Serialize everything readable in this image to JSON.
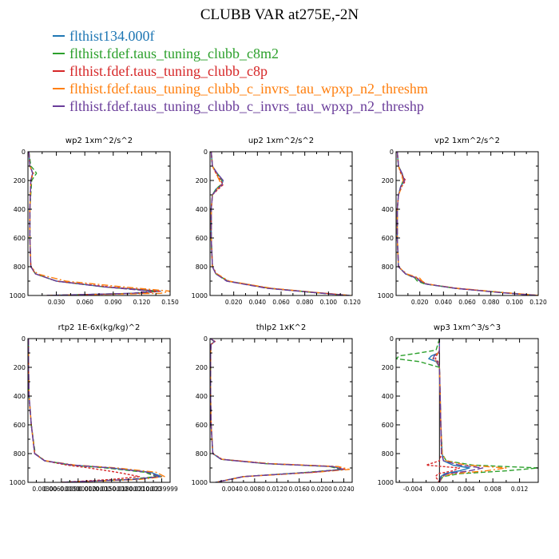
{
  "title": "CLUBB VAR at275E,-2N",
  "legend": [
    {
      "name": "flthist134.000f",
      "color": "#1f77b4"
    },
    {
      "name": "flthist.fdef.taus_tuning_clubb_c8m2",
      "color": "#2ca02c"
    },
    {
      "name": "flthist.fdef.taus_tuning_clubb_c8p",
      "color": "#d62728"
    },
    {
      "name": "flthist.fdef.taus_tuning_clubb_c_invrs_tau_wpxp_n2_threshm",
      "color": "#ff7f0e"
    },
    {
      "name": "flthist.fdef.taus_tuning_clubb_c_invrs_tau_wpxp_n2_threshp",
      "color": "#6a3d9a"
    }
  ],
  "chart_data": [
    {
      "type": "line",
      "title": "wp2  1xm^2/s^2",
      "xlim": [
        0,
        0.15
      ],
      "ylim": [
        1000,
        0
      ],
      "y_inverted": true,
      "xticks": [
        0.03,
        0.06,
        0.09,
        0.12,
        0.15
      ],
      "xtick_labels": [
        "0.030",
        "0.060",
        "0.090",
        "0.120",
        "0.150"
      ],
      "yticks": [
        0,
        200,
        400,
        600,
        800,
        1000
      ],
      "ytick_labels": [
        "0",
        "200",
        "400",
        "600",
        "800",
        "1000"
      ],
      "y": [
        0,
        100,
        130,
        150,
        200,
        400,
        600,
        800,
        850,
        900,
        940,
        970,
        985,
        1000
      ],
      "series": [
        {
          "x": [
            0.001,
            0.002,
            0.004,
            0.005,
            0.003,
            0.002,
            0.002,
            0.003,
            0.008,
            0.03,
            0.08,
            0.14,
            0.115,
            0.02
          ]
        },
        {
          "x": [
            0.001,
            0.003,
            0.007,
            0.009,
            0.004,
            0.002,
            0.002,
            0.003,
            0.008,
            0.03,
            0.08,
            0.135,
            0.11,
            0.02
          ]
        },
        {
          "x": [
            0.001,
            0.002,
            0.004,
            0.005,
            0.003,
            0.002,
            0.002,
            0.003,
            0.008,
            0.03,
            0.085,
            0.14,
            0.12,
            0.02
          ]
        },
        {
          "x": [
            0.001,
            0.002,
            0.004,
            0.006,
            0.003,
            0.002,
            0.002,
            0.003,
            0.01,
            0.04,
            0.1,
            0.15,
            0.14,
            0.02
          ]
        },
        {
          "x": [
            0.001,
            0.002,
            0.004,
            0.005,
            0.003,
            0.002,
            0.002,
            0.003,
            0.008,
            0.03,
            0.08,
            0.13,
            0.11,
            0.02
          ]
        }
      ]
    },
    {
      "type": "line",
      "title": "up2  1xm^2/s^2",
      "xlim": [
        0,
        0.12
      ],
      "ylim": [
        1000,
        0
      ],
      "y_inverted": true,
      "xticks": [
        0.02,
        0.04,
        0.06,
        0.08,
        0.1,
        0.12
      ],
      "xtick_labels": [
        "0.020",
        "0.040",
        "0.060",
        "0.080",
        "0.100",
        "0.120"
      ],
      "yticks": [
        0,
        200,
        400,
        600,
        800,
        1000
      ],
      "ytick_labels": [
        "0",
        "200",
        "400",
        "600",
        "800",
        "1000"
      ],
      "y": [
        0,
        100,
        150,
        200,
        230,
        260,
        300,
        400,
        600,
        800,
        850,
        900,
        950,
        980,
        1000
      ],
      "series": [
        {
          "x": [
            0.001,
            0.002,
            0.006,
            0.011,
            0.01,
            0.005,
            0.002,
            0.001,
            0.001,
            0.002,
            0.005,
            0.015,
            0.05,
            0.09,
            0.118
          ]
        },
        {
          "x": [
            0.001,
            0.002,
            0.006,
            0.01,
            0.009,
            0.005,
            0.002,
            0.001,
            0.001,
            0.002,
            0.005,
            0.015,
            0.05,
            0.088,
            0.116
          ]
        },
        {
          "x": [
            0.001,
            0.002,
            0.005,
            0.009,
            0.011,
            0.007,
            0.002,
            0.001,
            0.001,
            0.002,
            0.005,
            0.015,
            0.05,
            0.09,
            0.118
          ]
        },
        {
          "x": [
            0.001,
            0.002,
            0.005,
            0.008,
            0.009,
            0.006,
            0.002,
            0.001,
            0.001,
            0.002,
            0.006,
            0.016,
            0.052,
            0.091,
            0.119
          ]
        },
        {
          "x": [
            0.001,
            0.002,
            0.006,
            0.011,
            0.01,
            0.006,
            0.002,
            0.001,
            0.001,
            0.002,
            0.005,
            0.014,
            0.048,
            0.088,
            0.117
          ]
        }
      ]
    },
    {
      "type": "line",
      "title": "vp2  1xm^2/s^2",
      "xlim": [
        0,
        0.12
      ],
      "ylim": [
        1000,
        0
      ],
      "y_inverted": true,
      "xticks": [
        0.02,
        0.04,
        0.06,
        0.08,
        0.1,
        0.12
      ],
      "xtick_labels": [
        "0.020",
        "0.040",
        "0.060",
        "0.080",
        "0.100",
        "0.120"
      ],
      "yticks": [
        0,
        200,
        400,
        600,
        800,
        1000
      ],
      "ytick_labels": [
        "0",
        "200",
        "400",
        "600",
        "800",
        "1000"
      ],
      "y": [
        0,
        100,
        150,
        200,
        240,
        300,
        400,
        600,
        800,
        850,
        880,
        900,
        920,
        950,
        980,
        1000
      ],
      "series": [
        {
          "x": [
            0.001,
            0.002,
            0.005,
            0.007,
            0.004,
            0.002,
            0.001,
            0.001,
            0.002,
            0.008,
            0.018,
            0.02,
            0.025,
            0.05,
            0.09,
            0.12
          ]
        },
        {
          "x": [
            0.001,
            0.002,
            0.005,
            0.006,
            0.004,
            0.002,
            0.001,
            0.001,
            0.002,
            0.008,
            0.016,
            0.018,
            0.024,
            0.05,
            0.09,
            0.118
          ]
        },
        {
          "x": [
            0.001,
            0.002,
            0.004,
            0.008,
            0.005,
            0.002,
            0.001,
            0.001,
            0.002,
            0.008,
            0.018,
            0.021,
            0.026,
            0.05,
            0.09,
            0.12
          ]
        },
        {
          "x": [
            0.001,
            0.002,
            0.004,
            0.006,
            0.005,
            0.002,
            0.001,
            0.001,
            0.002,
            0.009,
            0.02,
            0.022,
            0.026,
            0.052,
            0.092,
            0.121
          ]
        },
        {
          "x": [
            0.001,
            0.002,
            0.005,
            0.007,
            0.004,
            0.002,
            0.001,
            0.001,
            0.002,
            0.008,
            0.017,
            0.02,
            0.025,
            0.05,
            0.088,
            0.119
          ]
        }
      ]
    },
    {
      "type": "line",
      "title": "rtp2  1E-6x(kg/kg)^2",
      "xlim": [
        0,
        0.0255
      ],
      "ylim": [
        1000,
        0
      ],
      "y_inverted": true,
      "xticks": [
        0.003,
        0.006,
        0.009,
        0.012,
        0.015,
        0.018,
        0.021,
        0.024
      ],
      "xtick_labels": [
        "0.00300",
        "0.00600000",
        "0.00900000",
        "0.0120000",
        "0.0150000",
        "0.0180000",
        "0.0210000",
        "0.0239999"
      ],
      "yticks": [
        0,
        200,
        400,
        600,
        800,
        1000
      ],
      "ytick_labels": [
        "0",
        "200",
        "400",
        "600",
        "800",
        "1000"
      ],
      "y": [
        0,
        200,
        400,
        600,
        800,
        850,
        880,
        900,
        930,
        960,
        980,
        1000
      ],
      "series": [
        {
          "x": [
            0.0001,
            0.0001,
            0.0002,
            0.0006,
            0.0012,
            0.003,
            0.008,
            0.015,
            0.022,
            0.024,
            0.019,
            0.006
          ]
        },
        {
          "x": [
            0.0001,
            0.0001,
            0.0002,
            0.0006,
            0.0013,
            0.003,
            0.0075,
            0.014,
            0.021,
            0.023,
            0.018,
            0.006
          ]
        },
        {
          "x": [
            0.0001,
            0.0001,
            0.0002,
            0.0006,
            0.0012,
            0.003,
            0.007,
            0.011,
            0.016,
            0.02,
            0.015,
            0.006
          ]
        },
        {
          "x": [
            0.0001,
            0.0001,
            0.0002,
            0.0006,
            0.0012,
            0.0032,
            0.0085,
            0.016,
            0.023,
            0.0245,
            0.02,
            0.006
          ]
        },
        {
          "x": [
            0.0001,
            0.0001,
            0.0002,
            0.0006,
            0.0012,
            0.003,
            0.008,
            0.015,
            0.0215,
            0.0235,
            0.0185,
            0.006
          ]
        }
      ]
    },
    {
      "type": "line",
      "title": "thlp2  1xK^2",
      "xlim": [
        0,
        0.0255
      ],
      "ylim": [
        1000,
        0
      ],
      "y_inverted": true,
      "xticks": [
        0.004,
        0.008,
        0.012,
        0.016,
        0.02,
        0.024
      ],
      "xtick_labels": [
        "0.0040",
        "0.0080",
        "0.0120",
        "0.0160",
        "0.0200",
        "0.0240"
      ],
      "yticks": [
        0,
        200,
        400,
        600,
        800,
        1000
      ],
      "ytick_labels": [
        "0",
        "200",
        "400",
        "600",
        "800",
        "1000"
      ],
      "y": [
        0,
        20,
        40,
        100,
        200,
        400,
        600,
        800,
        840,
        870,
        890,
        910,
        930,
        960,
        1000
      ],
      "series": [
        {
          "x": [
            0.0001,
            0.0008,
            0.0002,
            0.0001,
            0.0001,
            0.0001,
            0.0002,
            0.0005,
            0.002,
            0.01,
            0.022,
            0.024,
            0.018,
            0.006,
            0.001
          ]
        },
        {
          "x": [
            0.0001,
            0.0007,
            0.0002,
            0.0001,
            0.0001,
            0.0001,
            0.0002,
            0.0005,
            0.002,
            0.01,
            0.0215,
            0.0235,
            0.0175,
            0.006,
            0.001
          ]
        },
        {
          "x": [
            0.0001,
            0.0009,
            0.0002,
            0.0001,
            0.0001,
            0.0001,
            0.0002,
            0.0005,
            0.0022,
            0.0105,
            0.0225,
            0.0242,
            0.0185,
            0.006,
            0.001
          ]
        },
        {
          "x": [
            0.0001,
            0.0008,
            0.0002,
            0.0001,
            0.0001,
            0.0001,
            0.0002,
            0.0005,
            0.0022,
            0.011,
            0.023,
            0.025,
            0.019,
            0.0062,
            0.001
          ]
        },
        {
          "x": [
            0.0001,
            0.0008,
            0.0002,
            0.0001,
            0.0001,
            0.0001,
            0.0002,
            0.0005,
            0.002,
            0.01,
            0.022,
            0.0238,
            0.018,
            0.006,
            0.001
          ]
        }
      ]
    },
    {
      "type": "line",
      "title": "wp3  1xm^3/s^3",
      "xlim": [
        -0.0065,
        0.0148
      ],
      "ylim": [
        1000,
        0
      ],
      "y_inverted": true,
      "xticks": [
        -0.004,
        0.0,
        0.004,
        0.008,
        0.012
      ],
      "xtick_labels": [
        "-0.004",
        "0.000",
        "0.004",
        "0.008",
        "0.012"
      ],
      "yticks": [
        0,
        200,
        400,
        600,
        800,
        1000
      ],
      "ytick_labels": [
        "0",
        "200",
        "400",
        "600",
        "800",
        "1000"
      ],
      "y": [
        0,
        80,
        100,
        120,
        140,
        160,
        200,
        400,
        600,
        800,
        850,
        880,
        900,
        920,
        940,
        960,
        1000
      ],
      "series": [
        {
          "x": [
            0.0,
            0.0,
            -0.0002,
            -0.0012,
            -0.0016,
            -0.0005,
            0.0,
            0.0001,
            0.0002,
            0.0004,
            0.0006,
            0.002,
            0.0045,
            0.003,
            0.0008,
            0.0002,
            0.0
          ]
        },
        {
          "x": [
            0.0,
            -0.0005,
            -0.003,
            -0.006,
            -0.0065,
            -0.003,
            0.0,
            0.0001,
            0.0002,
            0.0004,
            0.001,
            0.005,
            0.0148,
            0.01,
            0.003,
            0.0005,
            0.0
          ]
        },
        {
          "x": [
            0.0,
            0.0,
            -0.0001,
            -0.0005,
            -0.0006,
            -0.0002,
            0.0,
            0.0001,
            0.0002,
            0.0003,
            0.0,
            -0.002,
            0.003,
            0.002,
            -0.0002,
            -0.0006,
            0.0
          ]
        },
        {
          "x": [
            0.0,
            0.0,
            -0.0002,
            -0.0008,
            -0.001,
            -0.0004,
            0.0,
            0.0001,
            0.0002,
            0.0004,
            0.001,
            0.004,
            0.01,
            0.007,
            0.002,
            0.0004,
            0.0
          ]
        },
        {
          "x": [
            0.0,
            0.0,
            -0.0001,
            -0.0008,
            -0.0009,
            -0.0003,
            0.0,
            0.0001,
            0.0002,
            0.0003,
            0.0006,
            0.003,
            0.0065,
            0.0045,
            0.0012,
            0.0003,
            0.0
          ]
        }
      ]
    }
  ]
}
